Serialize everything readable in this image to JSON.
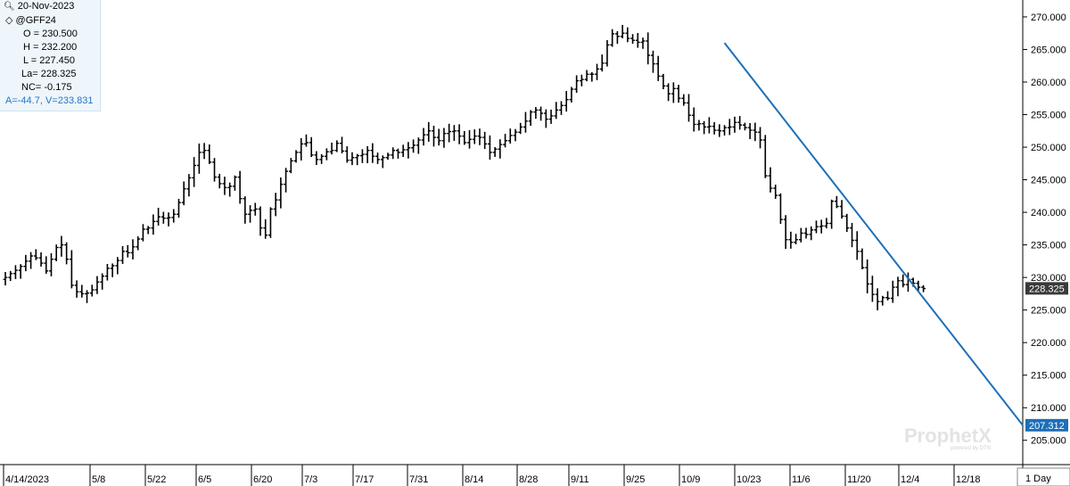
{
  "info": {
    "date": "20-Nov-2023",
    "symbol": "@GFF24",
    "open": "O = 230.500",
    "high": "H = 232.200",
    "low": "L = 227.450",
    "last": "La= 228.325",
    "net_change": "NC= -0.175",
    "cursor": "A=-44.7, V=233.831"
  },
  "brand": {
    "name": "ProphetX",
    "sub": "powered by DTN"
  },
  "timeframe": "1 Day",
  "chart_data": {
    "type": "ohlc-bar",
    "ylim": [
      202.5,
      271.5
    ],
    "y_ticks": [
      "205.000",
      "210.000",
      "215.000",
      "220.000",
      "225.000",
      "230.000",
      "235.000",
      "240.000",
      "245.000",
      "250.000",
      "255.000",
      "260.000",
      "265.000",
      "270.000"
    ],
    "x_labels": [
      "4/14/2023",
      "5/8",
      "5/22",
      "6/5",
      "6/20",
      "7/3",
      "7/17",
      "7/31",
      "8/14",
      "8/28",
      "9/11",
      "9/25",
      "10/9",
      "10/23",
      "11/6",
      "11/20",
      "12/4",
      "12/18"
    ],
    "last_price_tag": "228.325",
    "trendline_tag": "207.312",
    "trendline": {
      "start": {
        "bar_index": 141,
        "price": 266.0
      },
      "end": {
        "bar_index": 221,
        "price": 207.312
      }
    },
    "closes": [
      230.0,
      230.6,
      231.1,
      231.7,
      232.5,
      233.3,
      233.0,
      232.2,
      231.0,
      232.8,
      234.6,
      235.0,
      232.8,
      228.8,
      227.8,
      227.5,
      227.6,
      228.1,
      229.3,
      230.2,
      231.4,
      231.8,
      232.6,
      234.0,
      233.8,
      234.7,
      235.9,
      237.4,
      237.6,
      238.6,
      239.3,
      239.1,
      239.2,
      239.7,
      241.5,
      243.6,
      245.3,
      247.2,
      249.2,
      249.5,
      247.7,
      245.4,
      244.4,
      243.8,
      244.0,
      245.4,
      242.1,
      239.7,
      240.3,
      240.5,
      237.6,
      236.5,
      240.5,
      241.9,
      244.3,
      246.3,
      247.9,
      249.2,
      250.5,
      250.7,
      248.8,
      248.1,
      248.6,
      249.3,
      249.5,
      250.6,
      249.4,
      248.0,
      248.4,
      248.7,
      248.9,
      249.5,
      248.6,
      248.1,
      248.4,
      248.8,
      249.5,
      249.2,
      249.6,
      249.9,
      250.3,
      251.1,
      251.9,
      252.5,
      251.5,
      251.0,
      252.1,
      252.4,
      252.5,
      251.7,
      250.7,
      251.2,
      251.7,
      251.5,
      250.5,
      249.2,
      249.7,
      250.4,
      251.0,
      251.8,
      252.3,
      253.1,
      254.0,
      255.4,
      255.7,
      255.2,
      254.3,
      254.8,
      255.7,
      256.4,
      257.3,
      258.9,
      260.2,
      260.4,
      261.2,
      261.2,
      262.0,
      262.9,
      265.7,
      267.4,
      267.0,
      267.5,
      266.7,
      266.4,
      266.1,
      266.3,
      264.1,
      262.8,
      260.9,
      259.4,
      258.2,
      259.0,
      257.5,
      256.8,
      254.9,
      253.5,
      253.6,
      253.1,
      253.2,
      252.6,
      252.5,
      253.0,
      253.1,
      253.8,
      253.4,
      253.0,
      252.6,
      252.3,
      251.1,
      245.6,
      243.7,
      242.6,
      238.9,
      235.8,
      235.4,
      235.8,
      236.8,
      236.6,
      237.3,
      237.8,
      237.9,
      238.3,
      241.7,
      240.9,
      239.4,
      237.6,
      235.7,
      234.0,
      231.5,
      229.0,
      227.4,
      226.3,
      226.9,
      226.8,
      228.5,
      229.5,
      228.9,
      229.7,
      229.1,
      228.5,
      228.3
    ]
  }
}
